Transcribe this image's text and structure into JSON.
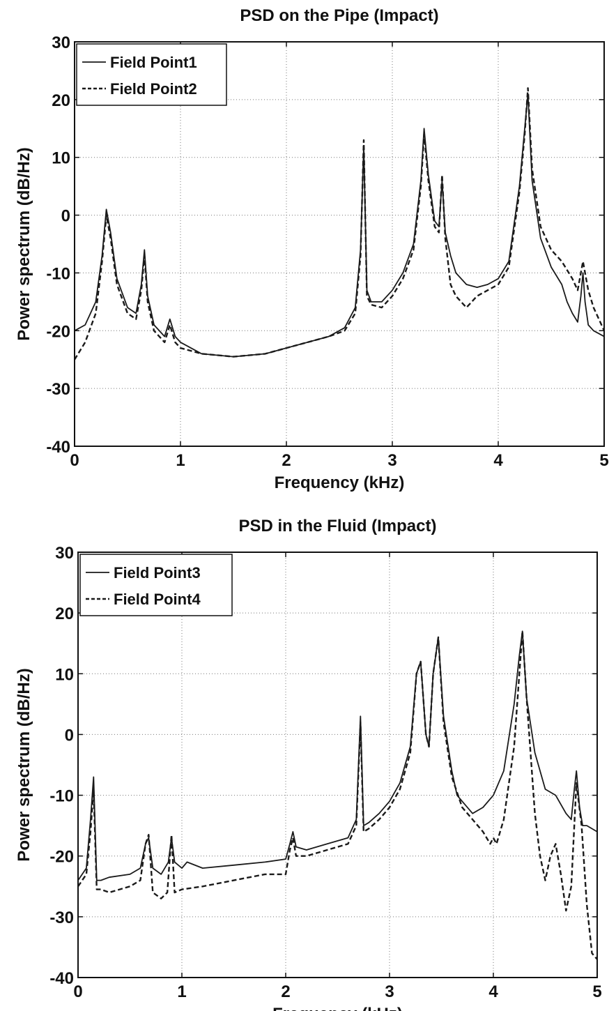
{
  "chart_data": [
    {
      "type": "line",
      "title": "PSD on the Pipe (Impact)",
      "xlabel": "Frequency (kHz)",
      "ylabel": "Power spectrum (dB/Hz)",
      "xlim": [
        0,
        5
      ],
      "ylim": [
        -40,
        30
      ],
      "xticks": [
        0,
        1,
        2,
        3,
        4,
        5
      ],
      "yticks": [
        -40,
        -30,
        -20,
        -10,
        0,
        10,
        20,
        30
      ],
      "grid": true,
      "legend_position": "top-left",
      "series": [
        {
          "name": "Field Point1",
          "style": "solid",
          "x": [
            0,
            0.1,
            0.2,
            0.26,
            0.3,
            0.34,
            0.4,
            0.5,
            0.58,
            0.63,
            0.66,
            0.69,
            0.75,
            0.85,
            0.9,
            0.95,
            1.0,
            1.2,
            1.5,
            1.8,
            2.0,
            2.2,
            2.4,
            2.55,
            2.65,
            2.7,
            2.73,
            2.76,
            2.8,
            2.9,
            3.0,
            3.1,
            3.2,
            3.27,
            3.3,
            3.34,
            3.4,
            3.44,
            3.47,
            3.5,
            3.55,
            3.6,
            3.7,
            3.8,
            3.9,
            4.0,
            4.1,
            4.2,
            4.25,
            4.28,
            4.32,
            4.4,
            4.5,
            4.6,
            4.65,
            4.7,
            4.75,
            4.78,
            4.8,
            4.82,
            4.85,
            4.9,
            5.0
          ],
          "y": [
            -20,
            -19,
            -15,
            -7,
            1,
            -3,
            -11,
            -16,
            -17,
            -12,
            -6,
            -14,
            -19,
            -21,
            -18,
            -21,
            -22,
            -24,
            -24.5,
            -24,
            -23,
            -22,
            -21,
            -19.5,
            -16,
            -6,
            12,
            -13,
            -15,
            -15,
            -13,
            -10,
            -5,
            6,
            15,
            7,
            -1,
            -2,
            6,
            -3,
            -7,
            -10,
            -12,
            -12.5,
            -12,
            -11,
            -8,
            5,
            15,
            21,
            6,
            -4,
            -9,
            -12,
            -15,
            -17,
            -18.5,
            -14,
            -10,
            -15,
            -19,
            -20,
            -21
          ]
        },
        {
          "name": "Field Point2",
          "style": "dashed",
          "x": [
            0,
            0.1,
            0.2,
            0.26,
            0.3,
            0.34,
            0.4,
            0.5,
            0.58,
            0.63,
            0.66,
            0.69,
            0.75,
            0.85,
            0.9,
            0.95,
            1.0,
            1.2,
            1.5,
            1.8,
            2.0,
            2.2,
            2.4,
            2.55,
            2.65,
            2.7,
            2.73,
            2.76,
            2.8,
            2.9,
            3.0,
            3.1,
            3.2,
            3.27,
            3.3,
            3.34,
            3.4,
            3.44,
            3.47,
            3.5,
            3.55,
            3.6,
            3.65,
            3.7,
            3.8,
            3.9,
            4.0,
            4.1,
            4.2,
            4.25,
            4.28,
            4.32,
            4.4,
            4.5,
            4.6,
            4.7,
            4.75,
            4.8,
            4.85,
            4.9,
            5.0
          ],
          "y": [
            -25,
            -22,
            -17,
            -8,
            0,
            -4,
            -12,
            -17,
            -18,
            -13,
            -7,
            -15,
            -20,
            -22,
            -19,
            -22,
            -23,
            -24,
            -24.5,
            -24,
            -23,
            -22,
            -21,
            -20,
            -17,
            -7,
            13,
            -14,
            -15.5,
            -16,
            -14,
            -11,
            -6,
            5,
            14,
            6,
            -2,
            -3,
            7,
            -4,
            -12,
            -14,
            -15,
            -16,
            -14,
            -13,
            -12,
            -9,
            4,
            14,
            22,
            8,
            -2,
            -6,
            -8,
            -11,
            -13,
            -8,
            -13,
            -16,
            -20
          ]
        }
      ]
    },
    {
      "type": "line",
      "title": "PSD in the Fluid (Impact)",
      "xlabel": "Frequency (kHz)",
      "ylabel": "Power spectrum (dB/Hz)",
      "xlim": [
        0,
        5
      ],
      "ylim": [
        -40,
        30
      ],
      "xticks": [
        0,
        1,
        2,
        3,
        4,
        5
      ],
      "yticks": [
        -40,
        -30,
        -20,
        -10,
        0,
        10,
        20,
        30
      ],
      "grid": true,
      "legend_position": "top-left",
      "series": [
        {
          "name": "Field Point3",
          "style": "solid",
          "x": [
            0,
            0.08,
            0.12,
            0.15,
            0.18,
            0.22,
            0.3,
            0.5,
            0.6,
            0.65,
            0.68,
            0.72,
            0.8,
            0.87,
            0.9,
            0.93,
            1.0,
            1.05,
            1.2,
            1.5,
            1.8,
            2.0,
            2.04,
            2.07,
            2.1,
            2.2,
            2.4,
            2.6,
            2.68,
            2.72,
            2.75,
            2.8,
            2.9,
            3.0,
            3.1,
            3.2,
            3.26,
            3.3,
            3.35,
            3.38,
            3.42,
            3.47,
            3.52,
            3.6,
            3.65,
            3.7,
            3.8,
            3.9,
            4.0,
            4.1,
            4.2,
            4.25,
            4.28,
            4.32,
            4.4,
            4.5,
            4.6,
            4.7,
            4.75,
            4.78,
            4.8,
            4.83,
            4.86,
            4.9,
            5.0
          ],
          "y": [
            -24,
            -22,
            -14,
            -7,
            -24,
            -24,
            -23.5,
            -23,
            -22,
            -18,
            -17,
            -22,
            -23,
            -21,
            -17,
            -21,
            -22,
            -21,
            -22,
            -21.5,
            -21,
            -20.5,
            -18,
            -16,
            -18.5,
            -19,
            -18,
            -17,
            -14,
            3,
            -15,
            -14.5,
            -13,
            -11,
            -8,
            -2,
            10,
            12,
            0,
            -2,
            10,
            16,
            3,
            -6,
            -10,
            -11,
            -13,
            -12,
            -10,
            -6,
            5,
            13,
            17,
            6,
            -3,
            -9,
            -10,
            -13,
            -14,
            -9,
            -6,
            -12,
            -15,
            -15,
            -16
          ]
        },
        {
          "name": "Field Point4",
          "style": "dashed",
          "x": [
            0,
            0.08,
            0.12,
            0.15,
            0.18,
            0.22,
            0.3,
            0.5,
            0.6,
            0.65,
            0.68,
            0.72,
            0.8,
            0.86,
            0.9,
            0.93,
            1.0,
            1.2,
            1.5,
            1.8,
            2.0,
            2.04,
            2.07,
            2.1,
            2.2,
            2.4,
            2.6,
            2.68,
            2.72,
            2.75,
            2.8,
            2.9,
            3.0,
            3.1,
            3.2,
            3.26,
            3.3,
            3.35,
            3.38,
            3.42,
            3.47,
            3.52,
            3.6,
            3.7,
            3.8,
            3.9,
            3.97,
            4.0,
            4.03,
            4.1,
            4.2,
            4.25,
            4.28,
            4.32,
            4.4,
            4.45,
            4.5,
            4.55,
            4.6,
            4.65,
            4.7,
            4.75,
            4.8,
            4.85,
            4.9,
            4.95,
            5.0
          ],
          "y": [
            -25,
            -23,
            -16,
            -9,
            -25.5,
            -25.5,
            -26,
            -25,
            -24,
            -18,
            -16.5,
            -26,
            -27,
            -26,
            -16.5,
            -26,
            -25.5,
            -25,
            -24,
            -23,
            -23,
            -19,
            -17,
            -20,
            -20,
            -19,
            -18,
            -15,
            2,
            -16,
            -15.5,
            -14,
            -12,
            -9,
            -3,
            10,
            12,
            0,
            -2,
            10,
            16,
            2,
            -7,
            -12,
            -14,
            -16,
            -18,
            -17,
            -18,
            -14,
            -2,
            10,
            17,
            6,
            -13,
            -20,
            -24,
            -20,
            -18,
            -23,
            -29,
            -25,
            -8,
            -15,
            -28,
            -36,
            -37
          ]
        }
      ]
    }
  ]
}
